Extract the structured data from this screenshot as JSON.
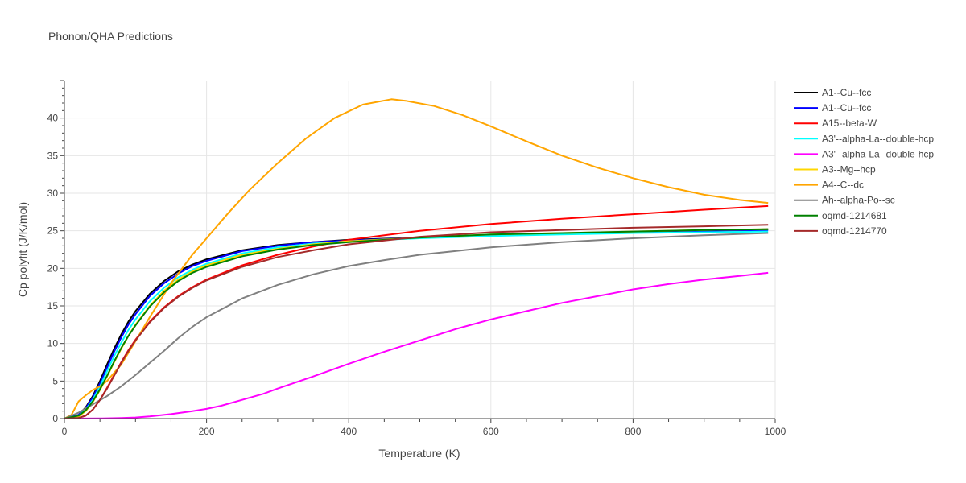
{
  "chart_data": {
    "type": "line",
    "title": "Phonon/QHA Predictions",
    "xlabel": "Temperature (K)",
    "ylabel": "Cp polyfit (J/K/mol)",
    "xlim": [
      0,
      1000
    ],
    "ylim": [
      0,
      45
    ],
    "xticks": [
      0,
      200,
      400,
      600,
      800,
      1000
    ],
    "yticks": [
      0,
      5,
      10,
      15,
      20,
      25,
      30,
      35,
      40
    ],
    "grid": true,
    "legend_position": "right",
    "series": [
      {
        "name": "A1--Cu--fcc",
        "color": "#000000",
        "width": 2,
        "x": [
          0,
          20,
          30,
          40,
          50,
          60,
          70,
          80,
          90,
          100,
          120,
          140,
          160,
          180,
          200,
          250,
          300,
          350,
          400,
          500,
          600,
          700,
          800,
          900,
          990
        ],
        "y": [
          0,
          0.5,
          1.5,
          3.0,
          5.0,
          7.2,
          9.3,
          11.2,
          12.9,
          14.3,
          16.6,
          18.3,
          19.6,
          20.5,
          21.2,
          22.4,
          23.1,
          23.5,
          23.8,
          24.1,
          24.4,
          24.6,
          24.8,
          25.0,
          25.2
        ]
      },
      {
        "name": "A1--Cu--fcc",
        "color": "#0000ff",
        "width": 2,
        "x": [
          0,
          20,
          30,
          40,
          50,
          60,
          70,
          80,
          90,
          100,
          120,
          140,
          160,
          180,
          200,
          250,
          300,
          350,
          400,
          500,
          600,
          700,
          800,
          900,
          990
        ],
        "y": [
          0,
          0.5,
          1.4,
          2.8,
          4.7,
          6.8,
          8.9,
          10.8,
          12.5,
          13.9,
          16.3,
          18.0,
          19.3,
          20.3,
          21.0,
          22.3,
          23.0,
          23.5,
          23.7,
          24.1,
          24.4,
          24.6,
          24.8,
          25.0,
          25.1
        ]
      },
      {
        "name": "A15--beta-W",
        "color": "#ff0000",
        "width": 2,
        "x": [
          0,
          20,
          30,
          40,
          50,
          60,
          70,
          80,
          90,
          100,
          120,
          140,
          160,
          180,
          200,
          250,
          300,
          350,
          400,
          500,
          600,
          700,
          800,
          900,
          990
        ],
        "y": [
          0,
          0.1,
          0.4,
          1.2,
          2.5,
          4.1,
          5.8,
          7.5,
          9.1,
          10.5,
          12.9,
          14.8,
          16.3,
          17.5,
          18.5,
          20.4,
          21.8,
          22.9,
          23.8,
          25.0,
          25.9,
          26.6,
          27.2,
          27.8,
          28.3
        ]
      },
      {
        "name": "A3'--alpha-La--double-hcp",
        "color": "#00ffff",
        "width": 2,
        "x": [
          0,
          20,
          30,
          40,
          50,
          60,
          70,
          80,
          90,
          100,
          120,
          140,
          160,
          180,
          200,
          250,
          300,
          350,
          400,
          500,
          600,
          700,
          800,
          900,
          990
        ],
        "y": [
          0,
          0.4,
          1.2,
          2.5,
          4.3,
          6.3,
          8.3,
          10.1,
          11.8,
          13.2,
          15.6,
          17.4,
          18.8,
          19.8,
          20.6,
          22.0,
          22.8,
          23.3,
          23.6,
          24.0,
          24.3,
          24.5,
          24.7,
          24.8,
          24.9
        ]
      },
      {
        "name": "A3'--alpha-La--double-hcp",
        "color": "#ff00ff",
        "width": 2,
        "x": [
          0,
          50,
          80,
          100,
          120,
          150,
          180,
          200,
          220,
          250,
          280,
          300,
          350,
          400,
          450,
          500,
          550,
          600,
          650,
          700,
          750,
          800,
          850,
          900,
          950,
          990
        ],
        "y": [
          0,
          0.02,
          0.07,
          0.15,
          0.3,
          0.6,
          1.0,
          1.3,
          1.7,
          2.5,
          3.3,
          4.0,
          5.6,
          7.3,
          8.9,
          10.4,
          11.9,
          13.2,
          14.3,
          15.4,
          16.3,
          17.2,
          17.9,
          18.5,
          19.0,
          19.4
        ]
      },
      {
        "name": "A3--Mg--hcp",
        "color": "#ffd700",
        "width": 2,
        "x": [
          0,
          20,
          30,
          40,
          50,
          60,
          70,
          80,
          90,
          100,
          120,
          140,
          160,
          180,
          200,
          250,
          300,
          350,
          400,
          500,
          600,
          700,
          800,
          900,
          990
        ],
        "y": [
          0,
          0.3,
          1.0,
          2.2,
          3.8,
          5.6,
          7.5,
          9.3,
          11.0,
          12.5,
          15.0,
          17.0,
          18.5,
          19.6,
          20.4,
          21.8,
          22.6,
          23.2,
          23.6,
          24.1,
          24.5,
          24.7,
          24.9,
          25.1,
          25.2
        ]
      },
      {
        "name": "A4--C--dc",
        "color": "#ffa500",
        "width": 2,
        "x": [
          0,
          10,
          20,
          30,
          40,
          50,
          60,
          80,
          100,
          120,
          150,
          180,
          200,
          230,
          260,
          300,
          340,
          380,
          420,
          460,
          480,
          520,
          560,
          600,
          650,
          700,
          750,
          800,
          850,
          900,
          950,
          990
        ],
        "y": [
          0,
          0.5,
          2.3,
          3.1,
          3.8,
          4.3,
          5.0,
          7.2,
          10.3,
          13.5,
          18.0,
          21.8,
          24.0,
          27.3,
          30.4,
          34.0,
          37.3,
          40.0,
          41.8,
          42.5,
          42.3,
          41.6,
          40.4,
          38.9,
          36.9,
          35.0,
          33.4,
          32.0,
          30.8,
          29.8,
          29.1,
          28.7
        ]
      },
      {
        "name": "Ah--alpha-Po--sc",
        "color": "#808080",
        "width": 2,
        "x": [
          0,
          20,
          40,
          60,
          80,
          100,
          120,
          140,
          160,
          180,
          200,
          250,
          300,
          350,
          400,
          450,
          500,
          600,
          700,
          800,
          900,
          990
        ],
        "y": [
          0,
          0.8,
          1.9,
          3.0,
          4.3,
          5.8,
          7.4,
          9.0,
          10.7,
          12.2,
          13.5,
          16.0,
          17.8,
          19.2,
          20.3,
          21.1,
          21.8,
          22.8,
          23.5,
          24.0,
          24.4,
          24.7
        ]
      },
      {
        "name": "oqmd-1214681",
        "color": "#008000",
        "width": 2,
        "x": [
          0,
          20,
          30,
          40,
          50,
          60,
          70,
          80,
          90,
          100,
          120,
          140,
          160,
          180,
          200,
          250,
          300,
          350,
          400,
          500,
          600,
          700,
          800,
          900,
          990
        ],
        "y": [
          0,
          0.4,
          1.1,
          2.3,
          3.9,
          5.7,
          7.6,
          9.4,
          11.0,
          12.4,
          14.9,
          16.8,
          18.3,
          19.4,
          20.2,
          21.6,
          22.5,
          23.1,
          23.5,
          24.1,
          24.5,
          24.7,
          24.9,
          25.1,
          25.2
        ]
      },
      {
        "name": "oqmd-1214770",
        "color": "#a52a2a",
        "width": 2,
        "x": [
          0,
          20,
          30,
          40,
          50,
          60,
          70,
          80,
          90,
          100,
          120,
          140,
          160,
          180,
          200,
          250,
          300,
          350,
          400,
          500,
          600,
          700,
          800,
          900,
          990
        ],
        "y": [
          0,
          0.1,
          0.4,
          1.2,
          2.5,
          4.0,
          5.7,
          7.4,
          9.0,
          10.4,
          12.8,
          14.7,
          16.2,
          17.4,
          18.4,
          20.2,
          21.5,
          22.4,
          23.2,
          24.2,
          24.8,
          25.1,
          25.4,
          25.6,
          25.8
        ]
      }
    ]
  }
}
